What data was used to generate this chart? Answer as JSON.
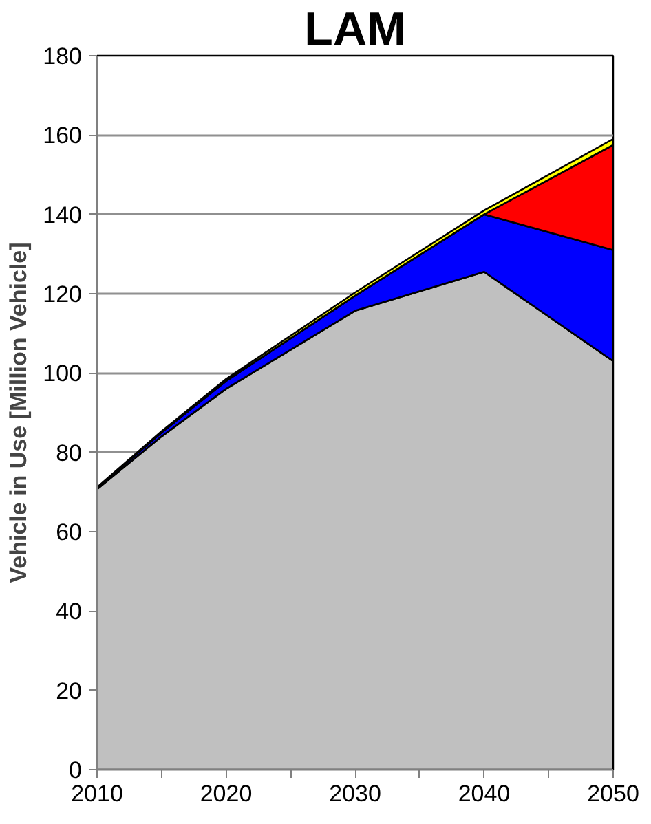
{
  "chart_data": {
    "type": "area",
    "stacked": true,
    "title": "LAM",
    "ylabel": "Vehicle in Use [Million Vehicle]",
    "x": [
      2010,
      2015,
      2020,
      2030,
      2040,
      2050
    ],
    "series": [
      {
        "color": "#c0c0c0",
        "values": [
          70.7,
          84,
          96,
          115.7,
          125.5,
          103
        ]
      },
      {
        "color": "#0000ff",
        "values": [
          0.3,
          1,
          2,
          3.8,
          14.5,
          28
        ]
      },
      {
        "color": "#ff0000",
        "values": [
          0,
          0,
          0,
          0,
          0,
          26.5
        ]
      },
      {
        "color": "#ffff00",
        "values": [
          0.2,
          0.3,
          0.5,
          0.8,
          1,
          1.5
        ]
      }
    ],
    "xlim": [
      2010,
      2050
    ],
    "xticks": [
      2010,
      {
        "value": 2015,
        "label": null
      },
      2020,
      {
        "value": 2025,
        "label": null
      },
      2030,
      {
        "value": 2035,
        "label": null
      },
      2040,
      {
        "value": 2045,
        "label": null
      },
      2050
    ],
    "ylim": [
      0,
      180
    ],
    "yticks": [
      0,
      20,
      40,
      60,
      80,
      100,
      120,
      140,
      160,
      180
    ],
    "grid": "y"
  }
}
